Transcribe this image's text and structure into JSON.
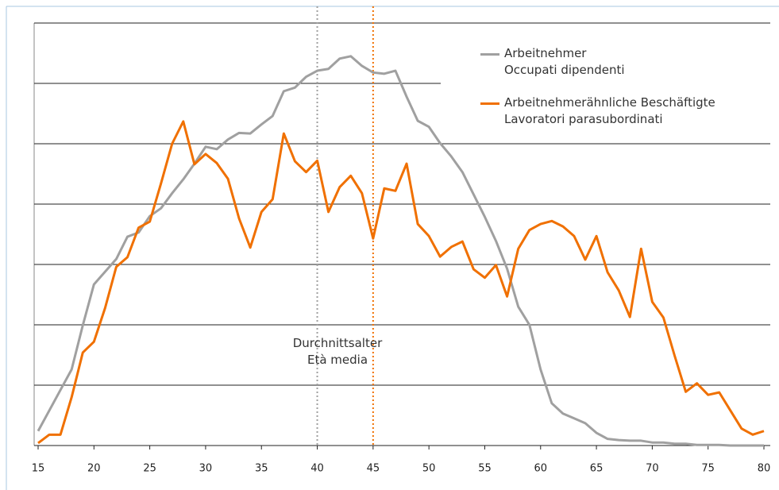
{
  "chart_data": {
    "type": "line",
    "x": [
      15,
      16,
      17,
      18,
      19,
      20,
      21,
      22,
      23,
      24,
      25,
      26,
      27,
      28,
      29,
      30,
      31,
      32,
      33,
      34,
      35,
      36,
      37,
      38,
      39,
      40,
      41,
      42,
      43,
      44,
      45,
      46,
      47,
      48,
      49,
      50,
      51,
      52,
      53,
      54,
      55,
      56,
      57,
      58,
      59,
      60,
      61,
      62,
      63,
      64,
      65,
      66,
      67,
      68,
      69,
      70,
      71,
      72,
      73,
      74,
      75,
      76,
      77,
      78,
      79,
      80
    ],
    "series": [
      {
        "name": "Arbeitnehmer\nOccupati dipendenti",
        "color": "#a0a0a0",
        "values": [
          0.24,
          0.58,
          0.92,
          1.26,
          1.99,
          2.67,
          2.88,
          3.09,
          3.46,
          3.53,
          3.8,
          3.93,
          4.18,
          4.41,
          4.67,
          4.95,
          4.91,
          5.07,
          5.18,
          5.17,
          5.32,
          5.46,
          5.87,
          5.93,
          6.11,
          6.21,
          6.24,
          6.41,
          6.45,
          6.29,
          6.18,
          6.16,
          6.21,
          5.78,
          5.38,
          5.28,
          5.01,
          4.79,
          4.53,
          4.16,
          3.79,
          3.39,
          2.93,
          2.3,
          2.0,
          1.26,
          0.7,
          0.53,
          0.45,
          0.37,
          0.21,
          0.11,
          0.09,
          0.08,
          0.08,
          0.05,
          0.05,
          0.03,
          0.03,
          0.01,
          0.01,
          0.01,
          0,
          0,
          0,
          0
        ]
      },
      {
        "name": "Arbeitnehmerähnliche Beschäftigte\nLavoratori parasubordinati",
        "color": "#f07000",
        "values": [
          0.04,
          0.18,
          0.18,
          0.8,
          1.54,
          1.72,
          2.28,
          2.96,
          3.12,
          3.61,
          3.71,
          4.34,
          5.0,
          5.37,
          4.66,
          4.83,
          4.68,
          4.42,
          3.76,
          3.28,
          3.87,
          4.08,
          5.17,
          4.71,
          4.53,
          4.72,
          3.87,
          4.28,
          4.47,
          4.18,
          3.43,
          4.26,
          4.22,
          4.67,
          3.67,
          3.47,
          3.13,
          3.29,
          3.38,
          2.92,
          2.78,
          2.99,
          2.47,
          3.26,
          3.57,
          3.67,
          3.72,
          3.63,
          3.47,
          3.08,
          3.47,
          2.87,
          2.57,
          2.13,
          3.26,
          2.38,
          2.12,
          1.49,
          0.89,
          1.03,
          0.84,
          0.88,
          0.58,
          0.28,
          0.18,
          0.24
        ]
      }
    ],
    "xlim": [
      15,
      80
    ],
    "xticks": [
      15,
      20,
      25,
      30,
      35,
      40,
      45,
      50,
      55,
      60,
      65,
      70,
      75,
      80
    ],
    "ylim": [
      0,
      7
    ],
    "yticks": [
      1,
      2,
      3,
      4,
      5,
      6,
      7
    ],
    "grid": true,
    "mean_lines": [
      {
        "x": 40,
        "color": "#a0a0a0"
      },
      {
        "x": 45,
        "color": "#f07000"
      }
    ],
    "annotation": "Durchnittsalter\nEtà media"
  }
}
